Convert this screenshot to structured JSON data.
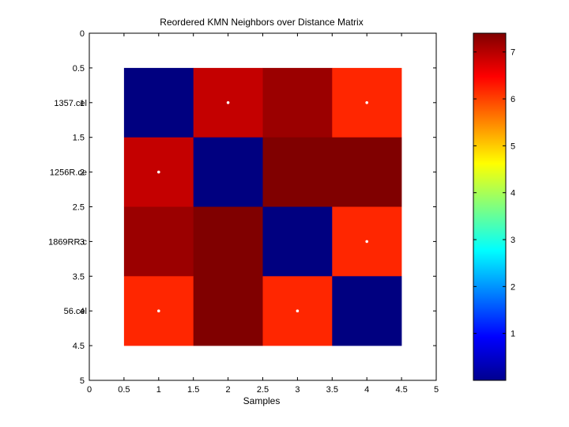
{
  "chart_data": {
    "type": "heatmap",
    "title": "Reordered KMN Neighbors over Distance Matrix",
    "xlabel": "Samples",
    "ylabel": "",
    "xlim": [
      0,
      5
    ],
    "ylim": [
      0,
      5
    ],
    "x_ticks": [
      "0",
      "0.5",
      "1",
      "1.5",
      "2",
      "2.5",
      "3",
      "3.5",
      "4",
      "4.5",
      "5"
    ],
    "y_ticks": [
      "0",
      "0.5",
      "1",
      "1.5",
      "2",
      "2.5",
      "3",
      "3.5",
      "4",
      "4.5",
      "5"
    ],
    "row_labels": [
      "1357.cel",
      "1256R.ce",
      "1869RR.c",
      "56.cel"
    ],
    "matrix": [
      [
        0.0,
        6.9,
        7.2,
        6.2
      ],
      [
        6.9,
        0.0,
        7.4,
        7.4
      ],
      [
        7.2,
        7.4,
        0.0,
        6.2
      ],
      [
        6.2,
        7.4,
        6.2,
        0.0
      ]
    ],
    "neighbor_markers": [
      {
        "col": 2,
        "row": 1
      },
      {
        "col": 4,
        "row": 1
      },
      {
        "col": 1,
        "row": 2
      },
      {
        "col": 4,
        "row": 3
      },
      {
        "col": 1,
        "row": 4
      },
      {
        "col": 3,
        "row": 4
      }
    ],
    "colorbar": {
      "colormap": "jet",
      "range": [
        0,
        7.4
      ],
      "ticks": [
        "1",
        "2",
        "3",
        "4",
        "5",
        "6",
        "7"
      ]
    },
    "grid": false
  }
}
